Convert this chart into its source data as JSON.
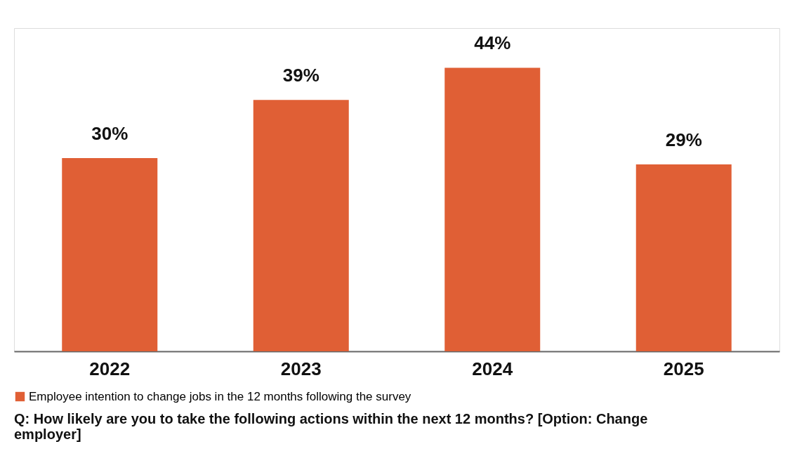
{
  "chart_data": {
    "type": "bar",
    "categories": [
      "2022",
      "2023",
      "2024",
      "2025"
    ],
    "series": [
      {
        "name": "Employee intention to change jobs in the 12 months following the survey",
        "color": "#e05f35",
        "values": [
          30,
          39,
          44,
          29
        ],
        "value_labels": [
          "30%",
          "39%",
          "44%",
          "29%"
        ]
      }
    ],
    "tick_labels": "x",
    "grid": false,
    "legend": "bottom",
    "annotations": [
      "Q: How likely are you to take the following actions within the next 12 months? [Option: Change employer]"
    ]
  }
}
